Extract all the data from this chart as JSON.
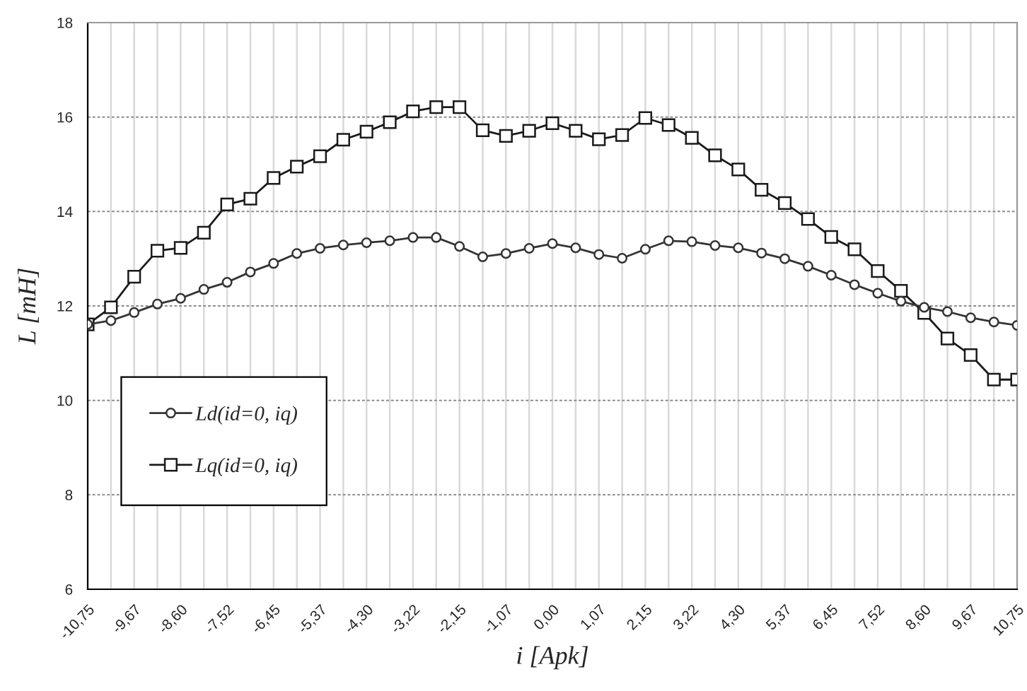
{
  "chart_data": {
    "type": "line",
    "xlabel": "i [Apk]",
    "ylabel": "L [mH]",
    "x": [
      -10.75,
      -10.2125,
      -9.675,
      -9.1375,
      -8.6,
      -8.0625,
      -7.525,
      -6.9875,
      -6.45,
      -5.9125,
      -5.375,
      -4.8375,
      -4.3,
      -3.7625,
      -3.225,
      -2.6875,
      -2.15,
      -1.6125,
      -1.075,
      -0.5375,
      0,
      0.5375,
      1.075,
      1.6125,
      2.15,
      2.6875,
      3.225,
      3.7625,
      4.3,
      4.8375,
      5.375,
      5.9125,
      6.45,
      6.9875,
      7.525,
      8.0625,
      8.6,
      9.1375,
      9.675,
      10.2125,
      10.75
    ],
    "series": [
      {
        "name": "Ld(id=0, iq)",
        "color": "#333333",
        "marker": "circle",
        "values": [
          11.61,
          11.69,
          11.86,
          12.04,
          12.16,
          12.35,
          12.5,
          12.72,
          12.9,
          13.11,
          13.22,
          13.29,
          13.34,
          13.38,
          13.45,
          13.45,
          13.26,
          13.04,
          13.11,
          13.22,
          13.32,
          13.23,
          13.09,
          13.01,
          13.2,
          13.38,
          13.36,
          13.28,
          13.23,
          13.12,
          13.0,
          12.84,
          12.65,
          12.45,
          12.27,
          12.1,
          11.97,
          11.88,
          11.75,
          11.66,
          11.59
        ]
      },
      {
        "name": "Lq(id=0, iq)",
        "color": "#1a1a1a",
        "marker": "square",
        "values": [
          11.61,
          11.97,
          12.62,
          13.17,
          13.23,
          13.55,
          14.15,
          14.27,
          14.71,
          14.95,
          15.17,
          15.52,
          15.69,
          15.89,
          16.12,
          16.21,
          16.21,
          15.72,
          15.6,
          15.71,
          15.87,
          15.71,
          15.53,
          15.62,
          15.98,
          15.83,
          15.56,
          15.19,
          14.89,
          14.46,
          14.18,
          13.84,
          13.46,
          13.2,
          12.74,
          12.32,
          11.85,
          11.31,
          10.96,
          10.44,
          10.44
        ]
      }
    ],
    "xlim": [
      -10.75,
      10.75
    ],
    "xticks": [
      {
        "value": -10.75,
        "label": "-10,75"
      },
      {
        "value": -10.2125,
        "label": null
      },
      {
        "value": -9.675,
        "label": "-9,67"
      },
      {
        "value": -9.1375,
        "label": null
      },
      {
        "value": -8.6,
        "label": "-8,60"
      },
      {
        "value": -8.0625,
        "label": null
      },
      {
        "value": -7.525,
        "label": "-7,52"
      },
      {
        "value": -6.9875,
        "label": null
      },
      {
        "value": -6.45,
        "label": "-6,45"
      },
      {
        "value": -5.9125,
        "label": null
      },
      {
        "value": -5.375,
        "label": "-5,37"
      },
      {
        "value": -4.8375,
        "label": null
      },
      {
        "value": -4.3,
        "label": "-4,30"
      },
      {
        "value": -3.7625,
        "label": null
      },
      {
        "value": -3.225,
        "label": "-3,22"
      },
      {
        "value": -2.6875,
        "label": null
      },
      {
        "value": -2.15,
        "label": "-2,15"
      },
      {
        "value": -1.6125,
        "label": null
      },
      {
        "value": -1.075,
        "label": "-1,07"
      },
      {
        "value": -0.5375,
        "label": null
      },
      {
        "value": 0,
        "label": "0,00"
      },
      {
        "value": 0.5375,
        "label": null
      },
      {
        "value": 1.075,
        "label": "1,07"
      },
      {
        "value": 1.6125,
        "label": null
      },
      {
        "value": 2.15,
        "label": "2,15"
      },
      {
        "value": 2.6875,
        "label": null
      },
      {
        "value": 3.225,
        "label": "3,22"
      },
      {
        "value": 3.7625,
        "label": null
      },
      {
        "value": 4.3,
        "label": "4,30"
      },
      {
        "value": 4.8375,
        "label": null
      },
      {
        "value": 5.375,
        "label": "5,37"
      },
      {
        "value": 5.9125,
        "label": null
      },
      {
        "value": 6.45,
        "label": "6,45"
      },
      {
        "value": 6.9875,
        "label": null
      },
      {
        "value": 7.525,
        "label": "7,52"
      },
      {
        "value": 8.0625,
        "label": null
      },
      {
        "value": 8.6,
        "label": "8,60"
      },
      {
        "value": 9.1375,
        "label": null
      },
      {
        "value": 9.675,
        "label": "9,67"
      },
      {
        "value": 10.2125,
        "label": null
      },
      {
        "value": 10.75,
        "label": "10,75"
      }
    ],
    "ylim": [
      6,
      18
    ],
    "yticks": [
      6,
      8,
      10,
      12,
      14,
      16,
      18
    ],
    "grid": true,
    "legend": "bottom left",
    "line_style": "solid"
  }
}
